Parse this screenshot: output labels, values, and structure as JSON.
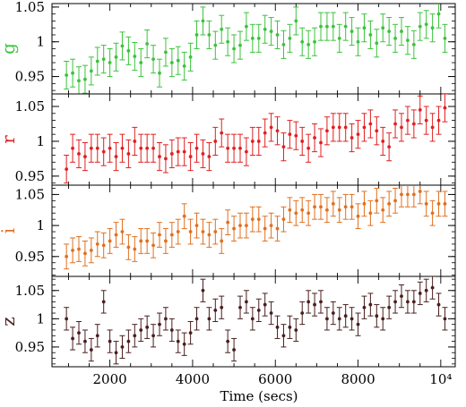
{
  "chart_data": {
    "type": "scatter",
    "xlabel": "Time (secs)",
    "xlim": [
      600,
      10350
    ],
    "x_ticks": [
      2000,
      4000,
      6000,
      8000,
      10000
    ],
    "x_tick_labels": [
      "2000",
      "4000",
      "6000",
      "8000",
      "10⁴"
    ],
    "x": [
      950,
      1100,
      1250,
      1400,
      1550,
      1700,
      1850,
      2000,
      2150,
      2300,
      2450,
      2600,
      2750,
      2900,
      3050,
      3200,
      3350,
      3500,
      3650,
      3800,
      3950,
      4100,
      4250,
      4400,
      4550,
      4700,
      4850,
      5000,
      5150,
      5300,
      5450,
      5600,
      5750,
      5900,
      6050,
      6200,
      6350,
      6500,
      6650,
      6800,
      6950,
      7100,
      7250,
      7400,
      7550,
      7700,
      7850,
      8000,
      8150,
      8300,
      8450,
      8600,
      8750,
      8900,
      9050,
      9200,
      9350,
      9500,
      9650,
      9800,
      9950,
      10100
    ],
    "error": 0.02,
    "panels": [
      {
        "name": "g",
        "color": "#3cc33c",
        "ylim": [
          0.925,
          1.055
        ],
        "y_ticks": [
          0.95,
          1.0,
          1.05
        ],
        "y_tick_labels": [
          "0.95",
          "1",
          "1.05"
        ],
        "values": [
          0.952,
          0.955,
          0.944,
          0.946,
          0.958,
          0.972,
          0.975,
          0.97,
          0.978,
          0.994,
          0.987,
          0.979,
          0.97,
          0.997,
          0.975,
          0.955,
          0.985,
          0.97,
          0.973,
          0.965,
          0.978,
          1.01,
          1.03,
          1.01,
          0.995,
          1.018,
          1.0,
          0.99,
          0.995,
          1.022,
          1.005,
          1.005,
          1.018,
          1.015,
          1.01,
          0.996,
          1.005,
          1.03,
          1.0,
          0.996,
          1.0,
          1.022,
          1.022,
          1.022,
          1.005,
          1.022,
          1.015,
          1.0,
          1.02,
          1.01,
          0.998,
          1.02,
          1.015,
          1.005,
          1.015,
          1.002,
          0.996,
          1.022,
          1.025,
          1.02,
          1.04,
          1.005
        ]
      },
      {
        "name": "r",
        "color": "#e02020",
        "ylim": [
          0.937,
          1.068
        ],
        "y_ticks": [
          0.95,
          1.0,
          1.05
        ],
        "y_tick_labels": [
          "0.95",
          "1",
          "1.05"
        ],
        "values": [
          0.96,
          0.99,
          0.982,
          0.978,
          0.99,
          0.99,
          0.985,
          0.99,
          0.978,
          0.99,
          0.982,
          1.0,
          0.99,
          0.99,
          0.99,
          0.978,
          0.975,
          0.982,
          0.985,
          0.985,
          0.978,
          0.99,
          0.982,
          0.978,
          1.0,
          1.012,
          0.99,
          0.99,
          0.99,
          0.985,
          1.0,
          1.0,
          1.012,
          1.02,
          1.015,
          0.992,
          1.01,
          1.008,
          1.0,
          0.99,
          1.005,
          0.998,
          1.015,
          1.02,
          1.02,
          1.02,
          1.005,
          1.01,
          1.02,
          1.025,
          1.015,
          1.0,
          0.992,
          1.025,
          1.02,
          1.03,
          1.025,
          1.045,
          1.03,
          1.02,
          1.03,
          1.048
        ]
      },
      {
        "name": "i",
        "color": "#e07020",
        "ylim": [
          0.918,
          1.065
        ],
        "y_ticks": [
          0.95,
          1.0,
          1.05
        ],
        "y_tick_labels": [
          "0.95",
          "1",
          "1.05"
        ],
        "values": [
          0.95,
          0.96,
          0.962,
          0.955,
          0.96,
          0.97,
          0.968,
          0.975,
          0.985,
          0.99,
          0.965,
          0.962,
          0.975,
          0.975,
          0.968,
          0.985,
          0.975,
          0.985,
          0.99,
          1.015,
          0.99,
          1.0,
          0.99,
          0.985,
          0.99,
          0.975,
          1.005,
          0.995,
          1.0,
          1.0,
          1.01,
          1.01,
          0.995,
          1.0,
          0.995,
          1.01,
          1.025,
          1.02,
          1.025,
          1.02,
          1.03,
          1.03,
          1.025,
          1.035,
          1.025,
          1.03,
          1.03,
          1.015,
          1.035,
          1.02,
          1.04,
          1.025,
          1.035,
          1.04,
          1.05,
          1.05,
          1.05,
          1.055,
          1.035,
          1.02,
          1.035,
          1.035
        ]
      },
      {
        "name": "z",
        "color": "#4a1e1e",
        "ylim": [
          0.915,
          1.075
        ],
        "y_ticks": [
          0.95,
          1.0,
          1.05
        ],
        "y_tick_labels": [
          "0.95",
          "1",
          "1.05"
        ],
        "values": [
          1.0,
          0.965,
          0.975,
          0.96,
          0.945,
          0.97,
          1.03,
          0.96,
          0.94,
          0.95,
          0.96,
          0.97,
          0.98,
          0.985,
          0.97,
          0.99,
          1.0,
          0.98,
          0.96,
          0.955,
          0.975,
          1.0,
          1.05,
          1.0,
          1.015,
          1.02,
          0.96,
          0.945,
          1.02,
          1.03,
          1.0,
          1.015,
          1.025,
          1.01,
          0.985,
          0.97,
          0.985,
          0.98,
          1.01,
          1.03,
          1.025,
          1.03,
          1.0,
          1.01,
          1.0,
          1.005,
          1.0,
          0.99,
          1.02,
          1.025,
          1.005,
          1.0,
          1.02,
          1.03,
          1.04,
          1.03,
          1.03,
          1.045,
          1.05,
          1.055,
          1.025,
          1.0
        ]
      }
    ]
  }
}
